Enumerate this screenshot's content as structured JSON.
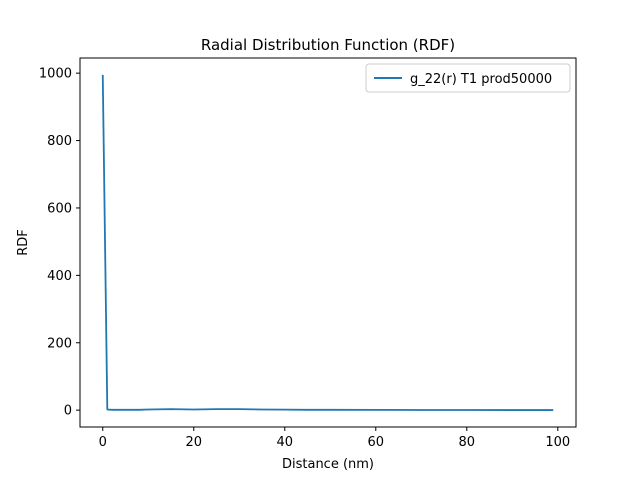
{
  "chart_data": {
    "type": "line",
    "title": "Radial Distribution Function (RDF)",
    "xlabel": "Distance (nm)",
    "ylabel": "RDF",
    "xlim": [
      -5,
      104
    ],
    "ylim": [
      -50,
      1045
    ],
    "xticks": [
      0,
      20,
      40,
      60,
      80,
      100
    ],
    "yticks": [
      0,
      200,
      400,
      600,
      800,
      1000
    ],
    "grid": false,
    "legend_position": "top-right",
    "series": [
      {
        "name": "g_22(r) T1 prod50000",
        "color": "#1f77b4",
        "x": [
          0,
          1,
          2,
          5,
          8,
          10,
          15,
          20,
          25,
          30,
          35,
          40,
          45,
          50,
          60,
          70,
          80,
          90,
          99
        ],
        "y": [
          995,
          2,
          1,
          1,
          1,
          2,
          3,
          2,
          3,
          3,
          2,
          1.5,
          1,
          1,
          0.8,
          0.5,
          0.4,
          0.3,
          0.2
        ]
      }
    ]
  }
}
